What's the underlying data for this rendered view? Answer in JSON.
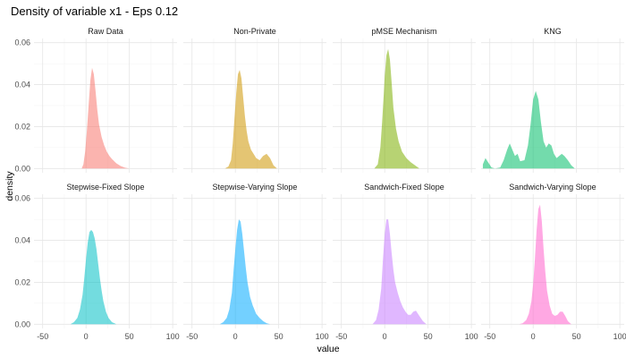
{
  "chart_data": {
    "type": "area",
    "title": "Density of variable x1 - Eps 0.12",
    "xlabel": "value",
    "ylabel": "density",
    "xlim": [
      -60,
      105
    ],
    "ylim": [
      -0.002,
      0.062
    ],
    "x_ticks": [
      "-50",
      "0",
      "50",
      "100"
    ],
    "y_ticks": [
      "0.00",
      "0.02",
      "0.04",
      "0.06"
    ],
    "grid": true,
    "legend": "none",
    "panels": [
      {
        "label": "Raw Data",
        "color": "#F8766D",
        "x": [
          -5,
          -3,
          -1,
          1,
          3,
          5,
          7,
          9,
          11,
          13,
          15,
          18,
          21,
          24,
          27,
          30,
          35,
          40,
          45,
          50
        ],
        "y": [
          0,
          0.002,
          0.008,
          0.018,
          0.03,
          0.042,
          0.048,
          0.045,
          0.037,
          0.028,
          0.021,
          0.015,
          0.011,
          0.008,
          0.006,
          0.0045,
          0.0025,
          0.0012,
          0.0004,
          0
        ]
      },
      {
        "label": "Non-Private",
        "color": "#CD9600",
        "x": [
          -12,
          -8,
          -5,
          -3,
          -1,
          1,
          3,
          5,
          7,
          9,
          11,
          13,
          15,
          18,
          21,
          24,
          28,
          32,
          36,
          40,
          44,
          48
        ],
        "y": [
          0,
          0.001,
          0.004,
          0.012,
          0.024,
          0.036,
          0.045,
          0.047,
          0.043,
          0.034,
          0.025,
          0.018,
          0.013,
          0.009,
          0.007,
          0.005,
          0.004,
          0.006,
          0.007,
          0.005,
          0.0015,
          0
        ]
      },
      {
        "label": "pMSE Mechanism",
        "color": "#7CAE00",
        "x": [
          -12,
          -8,
          -5,
          -3,
          -1,
          0,
          2,
          4,
          6,
          8,
          10,
          13,
          16,
          20,
          25,
          30,
          35,
          40
        ],
        "y": [
          0,
          0.002,
          0.01,
          0.022,
          0.036,
          0.044,
          0.054,
          0.057,
          0.052,
          0.041,
          0.029,
          0.019,
          0.013,
          0.008,
          0.005,
          0.003,
          0.0015,
          0
        ]
      },
      {
        "label": "KNG",
        "color": "#00BE67",
        "x": [
          -58,
          -55,
          -52,
          -48,
          -44,
          -38,
          -34,
          -30,
          -27,
          -24,
          -21,
          -18,
          -15,
          -10,
          -6,
          -3,
          0,
          3,
          6,
          9,
          12,
          15,
          18,
          21,
          24,
          27,
          30,
          33,
          36,
          40,
          44,
          48
        ],
        "y": [
          0.002,
          0.005,
          0.003,
          0.0005,
          0,
          0.0005,
          0.004,
          0.009,
          0.012,
          0.009,
          0.006,
          0.007,
          0.0035,
          0.004,
          0.011,
          0.021,
          0.033,
          0.037,
          0.033,
          0.022,
          0.013,
          0.01,
          0.012,
          0.011,
          0.007,
          0.005,
          0.006,
          0.007,
          0.006,
          0.004,
          0.0015,
          0
        ]
      },
      {
        "label": "Stepwise-Fixed Slope",
        "color": "#00BFC4",
        "x": [
          -18,
          -14,
          -10,
          -7,
          -4,
          -2,
          0,
          2,
          4,
          6,
          8,
          10,
          12,
          14,
          16,
          18,
          20,
          23,
          26,
          30,
          35
        ],
        "y": [
          0,
          0.001,
          0.003,
          0.007,
          0.014,
          0.022,
          0.031,
          0.039,
          0.044,
          0.045,
          0.044,
          0.041,
          0.036,
          0.029,
          0.022,
          0.016,
          0.011,
          0.006,
          0.003,
          0.001,
          0
        ]
      },
      {
        "label": "Stepwise-Varying Slope",
        "color": "#00A9FF",
        "x": [
          -18,
          -14,
          -10,
          -7,
          -4,
          -2,
          0,
          2,
          4,
          6,
          8,
          10,
          12,
          14,
          17,
          20,
          24,
          28,
          32,
          36,
          40
        ],
        "y": [
          0,
          0.001,
          0.003,
          0.007,
          0.015,
          0.026,
          0.036,
          0.045,
          0.05,
          0.049,
          0.043,
          0.035,
          0.027,
          0.02,
          0.013,
          0.009,
          0.005,
          0.003,
          0.0015,
          0.0005,
          0
        ]
      },
      {
        "label": "Sandwich-Fixed Slope",
        "color": "#C77CFF",
        "x": [
          -14,
          -10,
          -7,
          -4,
          -2,
          0,
          2,
          4,
          6,
          8,
          10,
          12,
          15,
          18,
          21,
          24,
          27,
          30,
          33,
          36,
          40,
          44,
          48
        ],
        "y": [
          0,
          0.002,
          0.007,
          0.017,
          0.031,
          0.043,
          0.05,
          0.05,
          0.043,
          0.034,
          0.026,
          0.02,
          0.015,
          0.011,
          0.008,
          0.006,
          0.0045,
          0.0045,
          0.006,
          0.0065,
          0.004,
          0.0015,
          0
        ]
      },
      {
        "label": "Sandwich-Varying Slope",
        "color": "#FF61CC",
        "x": [
          -16,
          -12,
          -8,
          -5,
          -2,
          0,
          2,
          4,
          6,
          8,
          10,
          12,
          14,
          16,
          19,
          22,
          25,
          28,
          31,
          34,
          37,
          40,
          44
        ],
        "y": [
          0,
          0.0005,
          0.002,
          0.005,
          0.011,
          0.019,
          0.031,
          0.045,
          0.055,
          0.057,
          0.049,
          0.036,
          0.025,
          0.016,
          0.009,
          0.005,
          0.004,
          0.0045,
          0.006,
          0.006,
          0.004,
          0.0015,
          0
        ]
      }
    ]
  }
}
